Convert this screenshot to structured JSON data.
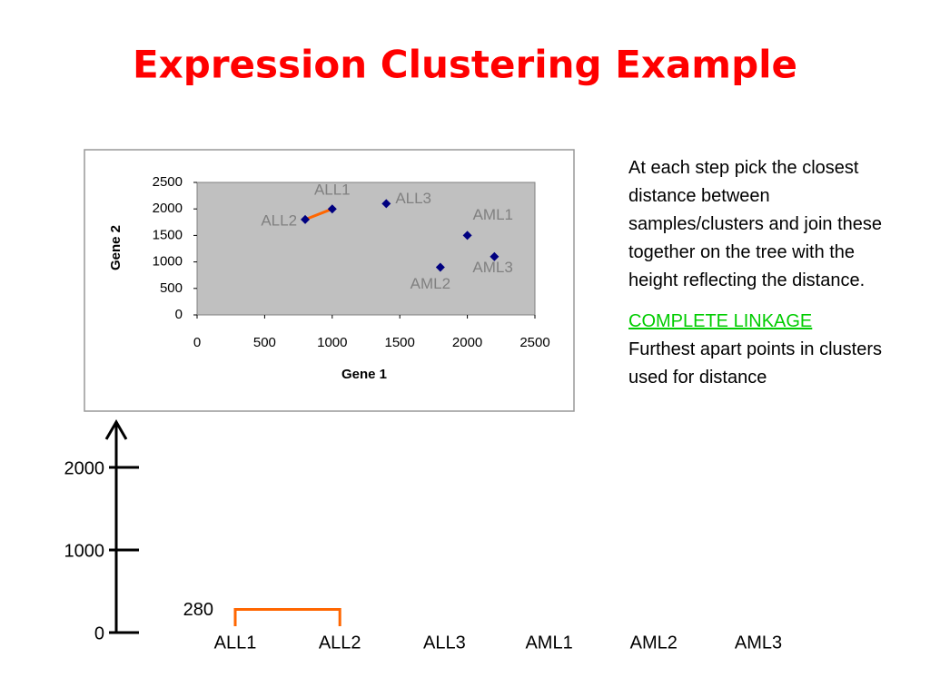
{
  "title": "Expression Clustering Example",
  "chart_data": [
    {
      "type": "scatter",
      "x_label": "Gene 1",
      "y_label": "Gene 2",
      "labels": [
        "ALL1",
        "ALL2",
        "ALL3",
        "AML1",
        "AML2",
        "AML3"
      ],
      "x": [
        1000,
        800,
        1400,
        2000,
        1800,
        2200
      ],
      "values": [
        2000,
        1800,
        2100,
        1500,
        900,
        1100
      ],
      "color": "#000080",
      "xlim": [
        0,
        2500
      ],
      "xticks": [
        0,
        500,
        1000,
        1500,
        2000,
        2500
      ],
      "ylim": [
        0,
        2500
      ],
      "yticks": [
        0,
        500,
        1000,
        1500,
        2000,
        2500
      ]
    },
    {
      "type": "dendrogram",
      "categories": [
        "ALL1",
        "ALL2",
        "ALL3",
        "AML1",
        "AML2",
        "AML3"
      ],
      "merges": [
        {
          "members": [
            0,
            1
          ],
          "height": 280
        }
      ],
      "color": "#ff6600",
      "ylim": [
        0,
        2550
      ],
      "yticks": [
        0,
        1000,
        2000
      ]
    }
  ],
  "notes": {
    "text": "At each step pick the closest distance between samples/clusters and join these together on the tree with the height reflecting the distance.",
    "link": "COMPLETE LINKAGE",
    "detail": "Furthest apart points in clusters used for distance"
  }
}
